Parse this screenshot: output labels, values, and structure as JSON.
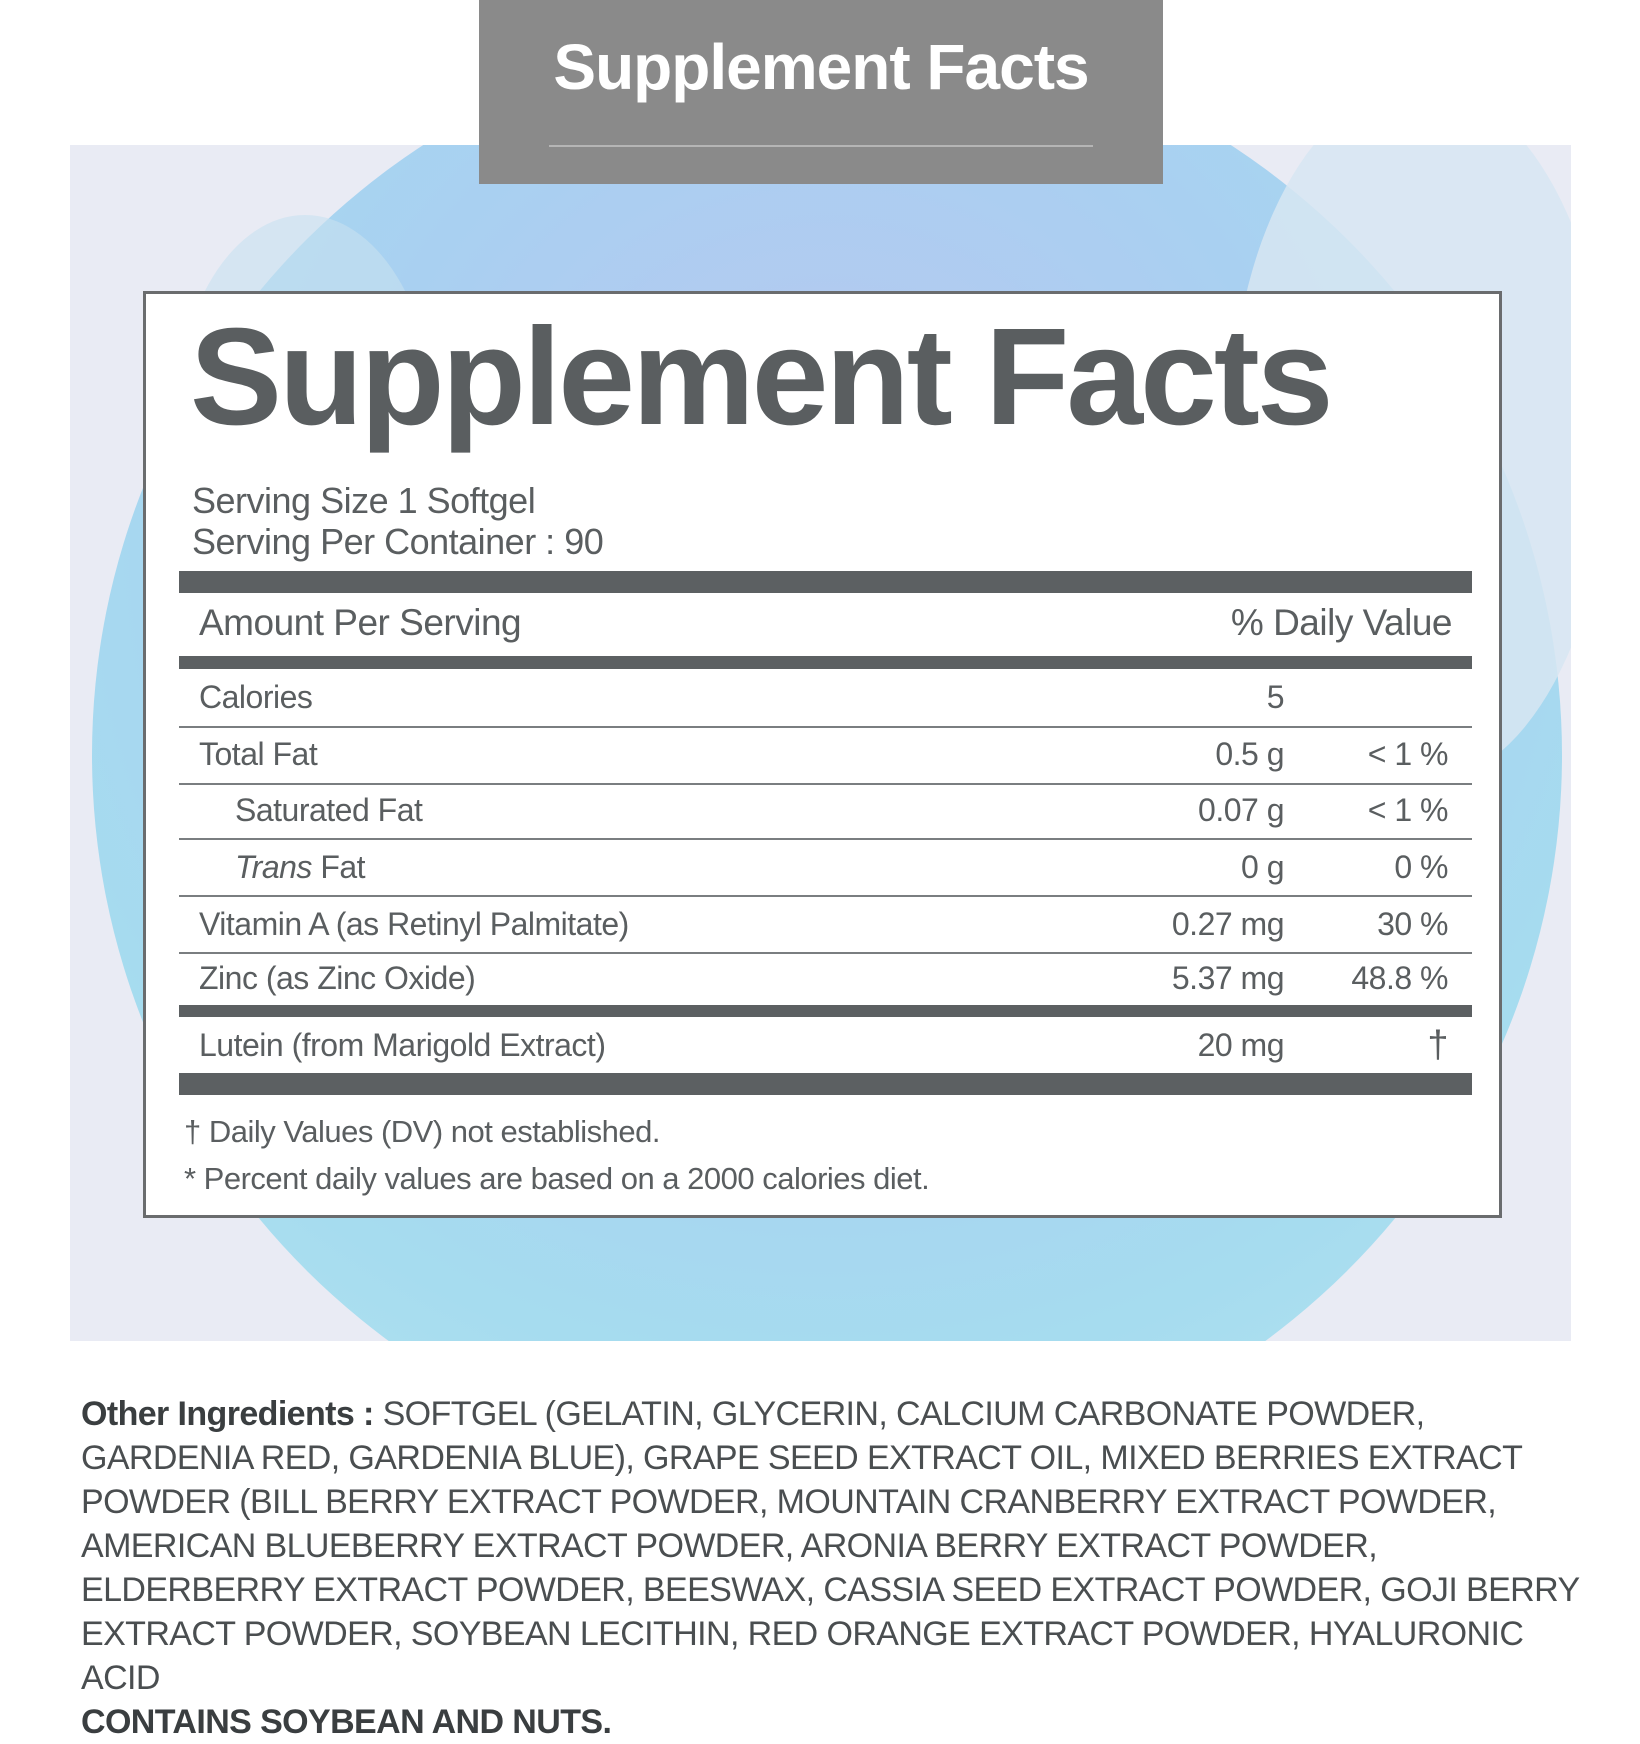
{
  "header": {
    "title": "Supplement Facts"
  },
  "label": {
    "title": "Supplement Facts",
    "serving_size": "Serving Size  1 Softgel",
    "servings_per_container": "Serving Per Container : 90",
    "col_amount": "Amount Per Serving",
    "col_dv": "% Daily Value",
    "rows": [
      {
        "name": "Calories",
        "amount": "5",
        "dv": ""
      },
      {
        "name": "Total Fat",
        "amount": "0.5 g",
        "dv": "< 1 %"
      },
      {
        "name": "Saturated Fat",
        "amount": "0.07 g",
        "dv": "< 1 %"
      },
      {
        "name_italic": "Trans",
        "name": " Fat",
        "amount": "0 g",
        "dv": "0 %"
      },
      {
        "name": "Vitamin A (as Retinyl Palmitate)",
        "amount": "0.27 mg",
        "dv": "30 %"
      },
      {
        "name": "Zinc (as Zinc Oxide)",
        "amount": "5.37 mg",
        "dv": "48.8 %"
      },
      {
        "name": "Lutein (from Marigold Extract)",
        "amount": "20 mg",
        "dv": "†"
      }
    ],
    "footnotes": [
      "† Daily Values (DV) not established.",
      "* Percent daily values are based on a 2000 calories diet."
    ]
  },
  "ingredients": {
    "label": "Other Ingredients :",
    "text": " SOFTGEL (GELATIN, GLYCERIN, CALCIUM CARBONATE POWDER, GARDENIA RED, GARDENIA BLUE), GRAPE SEED EXTRACT OIL, MIXED BERRIES EXTRACT POWDER (BILL BERRY EXTRACT POWDER, MOUNTAIN CRANBERRY EXTRACT POWDER, AMERICAN BLUEBERRY EXTRACT POWDER, ARONIA BERRY EXTRACT POWDER, ELDERBERRY EXTRACT POWDER, BEESWAX, CASSIA SEED EXTRACT POWDER, GOJI BERRY EXTRACT POWDER, SOYBEAN LECITHIN, RED ORANGE EXTRACT POWDER, HYALURONIC ACID",
    "allergen": "CONTAINS SOYBEAN AND NUTS."
  }
}
